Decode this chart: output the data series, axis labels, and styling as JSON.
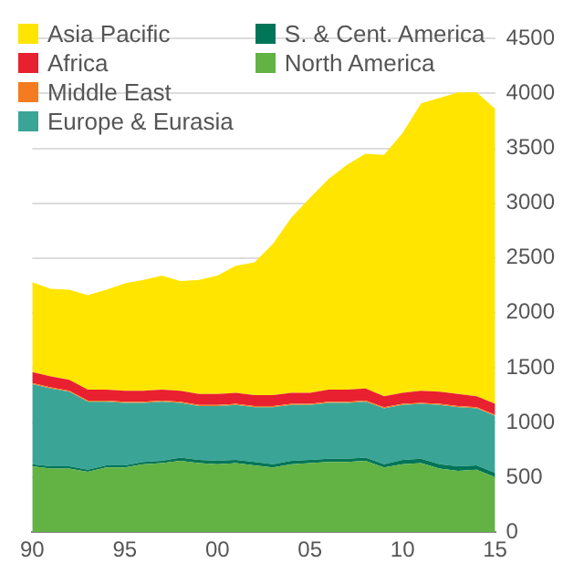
{
  "chart_data": {
    "type": "area",
    "stacked": true,
    "x": [
      1990,
      1991,
      1992,
      1993,
      1994,
      1995,
      1996,
      1997,
      1998,
      1999,
      2000,
      2001,
      2002,
      2003,
      2004,
      2005,
      2006,
      2007,
      2008,
      2009,
      2010,
      2011,
      2012,
      2013,
      2014,
      2015
    ],
    "series": [
      {
        "name": "North America",
        "color": "#62b244",
        "values": [
          600,
          580,
          580,
          550,
          590,
          590,
          620,
          630,
          650,
          630,
          620,
          630,
          610,
          590,
          620,
          630,
          640,
          640,
          650,
          590,
          620,
          630,
          580,
          560,
          570,
          500
        ]
      },
      {
        "name": "S. & Cent. America",
        "color": "#007558",
        "values": [
          20,
          20,
          20,
          20,
          20,
          20,
          20,
          20,
          30,
          30,
          30,
          30,
          30,
          30,
          30,
          30,
          30,
          30,
          30,
          30,
          40,
          40,
          40,
          40,
          40,
          40
        ]
      },
      {
        "name": "Europe & Eurasia",
        "color": "#3aa597",
        "values": [
          730,
          710,
          680,
          620,
          580,
          570,
          540,
          540,
          500,
          490,
          500,
          500,
          500,
          520,
          510,
          500,
          510,
          510,
          510,
          510,
          500,
          500,
          540,
          540,
          520,
          520
        ]
      },
      {
        "name": "Middle East",
        "color": "#f47b20",
        "values": [
          10,
          10,
          10,
          10,
          10,
          10,
          10,
          10,
          10,
          10,
          10,
          10,
          10,
          10,
          10,
          10,
          10,
          10,
          10,
          10,
          10,
          10,
          10,
          10,
          10,
          10
        ]
      },
      {
        "name": "Africa",
        "color": "#e8202f",
        "values": [
          100,
          100,
          100,
          100,
          100,
          100,
          100,
          100,
          100,
          100,
          100,
          100,
          100,
          100,
          100,
          100,
          110,
          110,
          110,
          100,
          100,
          110,
          110,
          110,
          100,
          100
        ]
      },
      {
        "name": "Asia Pacific",
        "color": "#ffe500",
        "values": [
          820,
          800,
          820,
          860,
          910,
          980,
          1010,
          1040,
          1000,
          1040,
          1080,
          1160,
          1210,
          1380,
          1600,
          1780,
          1920,
          2050,
          2140,
          2200,
          2370,
          2620,
          2680,
          2750,
          2770,
          2690
        ]
      }
    ],
    "xlim": [
      1990,
      2015
    ],
    "xticks": [
      {
        "value": 1990,
        "label": "90"
      },
      {
        "value": 1995,
        "label": "95"
      },
      {
        "value": 2000,
        "label": "00"
      },
      {
        "value": 2005,
        "label": "05"
      },
      {
        "value": 2010,
        "label": "10"
      },
      {
        "value": 2015,
        "label": "15"
      }
    ],
    "ylim": [
      0,
      4500
    ],
    "yticks": [
      0,
      500,
      1000,
      1500,
      2000,
      2500,
      3000,
      3500,
      4000,
      4500
    ],
    "grid": "y",
    "legend": "top left"
  }
}
